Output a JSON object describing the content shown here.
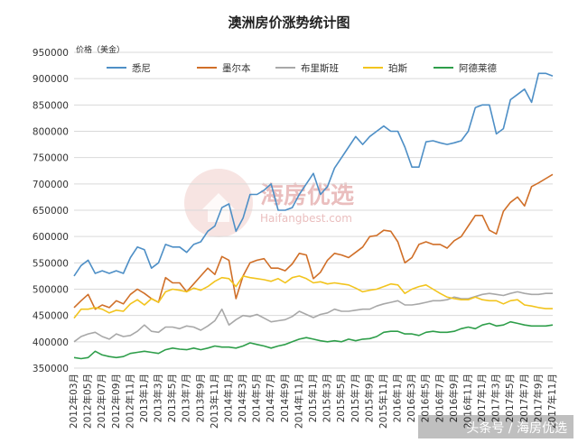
{
  "chart_data": {
    "type": "line",
    "title": "澳洲房价涨势统计图",
    "ylabel": "价格（美金）",
    "xlabel": "",
    "ylim": [
      350000,
      950000
    ],
    "yticks": [
      "350000",
      "400000",
      "450000",
      "500000",
      "550000",
      "600000",
      "650000",
      "700000",
      "750000",
      "800000",
      "850000",
      "900000",
      "950000"
    ],
    "grid": true,
    "legend_position": "top",
    "categories": [
      "2012年03月",
      "2012年04月",
      "2012年05月",
      "2012年06月",
      "2012年07月",
      "2012年08月",
      "2012年09月",
      "2012年10月",
      "2012年11月",
      "2012年12月",
      "2013年1月",
      "2013年2月",
      "2013年3月",
      "2013年4月",
      "2013年5月",
      "2013年6月",
      "2013年7月",
      "2013年8月",
      "2013年9月",
      "2013年10月",
      "2013年11月",
      "2013年12月",
      "2014年1月",
      "2014年2月",
      "2014年3月",
      "2014年4月",
      "2014年5月",
      "2014年6月",
      "2014年7月",
      "2014年8月",
      "2014年9月",
      "2014年10月",
      "2014年11月",
      "2014年12月",
      "2015年1月",
      "2015年2月",
      "2015年3月",
      "2015年4月",
      "2015年5月",
      "2015年6月",
      "2015年7月",
      "2015年8月",
      "2015年9月",
      "2015年10月",
      "2015年11月",
      "2015年12月",
      "2016年1月",
      "2016年2月",
      "2016年3月",
      "2016年4月",
      "2016年5月",
      "2016年6月",
      "2016年7月",
      "2016年8月",
      "2016年9月",
      "2016年10月",
      "2016年11月",
      "2016年12月",
      "2017年1月",
      "2017年2月",
      "2017年3月",
      "2017年4月",
      "2017年5月",
      "2017年6月",
      "2017年7月",
      "2017年8月",
      "2017年9月",
      "2017年10月",
      "2017年11月"
    ],
    "tick_labels": [
      "2012年03月",
      "2012年05月",
      "2012年07月",
      "2012年09月",
      "2012年11月",
      "2013年1月",
      "2013年3月",
      "2013年5月",
      "2013年7月",
      "2013年9月",
      "2013年11月",
      "2014年1月",
      "2014年3月",
      "2014年5月",
      "2014年7月",
      "2014年9月",
      "2014年11月",
      "2015年1月",
      "2015年3月",
      "2015年5月",
      "2015年7月",
      "2015年9月",
      "2015年11月",
      "2016年1月",
      "2016年3月",
      "2016年5月",
      "2016年7月",
      "2016年9月",
      "2016年11月",
      "2017年1月",
      "2017年3月",
      "2017年5月",
      "2017年7月",
      "2017年9月",
      "2017年11月"
    ],
    "series": [
      {
        "name": "悉尼",
        "color": "#4e8fc6",
        "values": [
          525000,
          545000,
          555000,
          530000,
          535000,
          530000,
          535000,
          530000,
          560000,
          580000,
          575000,
          540000,
          550000,
          585000,
          580000,
          580000,
          570000,
          585000,
          590000,
          610000,
          620000,
          655000,
          662000,
          610000,
          635000,
          680000,
          680000,
          688000,
          700000,
          650000,
          650000,
          655000,
          680000,
          700000,
          720000,
          680000,
          695000,
          730000,
          750000,
          770000,
          790000,
          775000,
          790000,
          800000,
          810000,
          800000,
          800000,
          770000,
          732000,
          732000,
          780000,
          782000,
          778000,
          775000,
          778000,
          782000,
          800000,
          845000,
          850000,
          850000,
          795000,
          805000,
          860000,
          870000,
          880000,
          855000,
          910000,
          910000,
          905000
        ]
      },
      {
        "name": "墨尔本",
        "color": "#d06f28",
        "values": [
          465000,
          478000,
          490000,
          462000,
          470000,
          465000,
          478000,
          472000,
          490000,
          500000,
          492000,
          482000,
          475000,
          522000,
          512000,
          512000,
          495000,
          510000,
          525000,
          540000,
          528000,
          562000,
          555000,
          482000,
          525000,
          550000,
          555000,
          558000,
          540000,
          540000,
          535000,
          548000,
          568000,
          565000,
          520000,
          532000,
          555000,
          568000,
          565000,
          560000,
          570000,
          580000,
          600000,
          602000,
          612000,
          610000,
          590000,
          550000,
          560000,
          585000,
          590000,
          585000,
          585000,
          578000,
          592000,
          600000,
          620000,
          640000,
          640000,
          612000,
          605000,
          648000,
          665000,
          675000,
          658000,
          695000,
          702000,
          710000,
          718000
        ]
      },
      {
        "name": "布里斯班",
        "color": "#a8a8a8",
        "values": [
          400000,
          410000,
          415000,
          418000,
          410000,
          405000,
          415000,
          410000,
          412000,
          420000,
          432000,
          420000,
          418000,
          428000,
          428000,
          425000,
          430000,
          428000,
          422000,
          430000,
          440000,
          462000,
          432000,
          442000,
          450000,
          448000,
          452000,
          445000,
          438000,
          440000,
          442000,
          448000,
          458000,
          452000,
          446000,
          452000,
          455000,
          462000,
          458000,
          458000,
          460000,
          462000,
          462000,
          468000,
          472000,
          475000,
          478000,
          470000,
          470000,
          472000,
          475000,
          478000,
          478000,
          480000,
          485000,
          482000,
          482000,
          486000,
          490000,
          492000,
          490000,
          488000,
          492000,
          495000,
          492000,
          490000,
          490000,
          492000,
          492000
        ]
      },
      {
        "name": "珀斯",
        "color": "#f2c41e",
        "values": [
          445000,
          462000,
          462000,
          465000,
          462000,
          455000,
          460000,
          458000,
          472000,
          480000,
          470000,
          482000,
          475000,
          495000,
          500000,
          498000,
          495000,
          502000,
          498000,
          505000,
          515000,
          522000,
          520000,
          505000,
          525000,
          522000,
          520000,
          518000,
          515000,
          520000,
          512000,
          522000,
          525000,
          520000,
          512000,
          514000,
          510000,
          512000,
          510000,
          508000,
          502000,
          495000,
          498000,
          500000,
          505000,
          510000,
          508000,
          492000,
          500000,
          505000,
          508000,
          500000,
          492000,
          485000,
          482000,
          480000,
          480000,
          485000,
          480000,
          478000,
          478000,
          472000,
          478000,
          480000,
          470000,
          468000,
          465000,
          463000,
          463000
        ]
      },
      {
        "name": "阿德莱德",
        "color": "#2e9e4a",
        "values": [
          370000,
          368000,
          370000,
          382000,
          375000,
          372000,
          370000,
          372000,
          378000,
          380000,
          382000,
          380000,
          378000,
          385000,
          388000,
          386000,
          385000,
          388000,
          385000,
          388000,
          392000,
          390000,
          390000,
          388000,
          392000,
          398000,
          395000,
          392000,
          388000,
          392000,
          395000,
          400000,
          405000,
          408000,
          405000,
          402000,
          400000,
          402000,
          400000,
          405000,
          402000,
          405000,
          406000,
          410000,
          418000,
          420000,
          420000,
          415000,
          415000,
          412000,
          418000,
          420000,
          418000,
          418000,
          420000,
          425000,
          428000,
          425000,
          432000,
          435000,
          430000,
          432000,
          438000,
          435000,
          432000,
          430000,
          430000,
          430000,
          432000
        ]
      }
    ]
  },
  "watermark": {
    "text": "海房优选",
    "sub": "Haifangbest.com"
  },
  "footer": {
    "text": "头条号 / 海房优选"
  }
}
